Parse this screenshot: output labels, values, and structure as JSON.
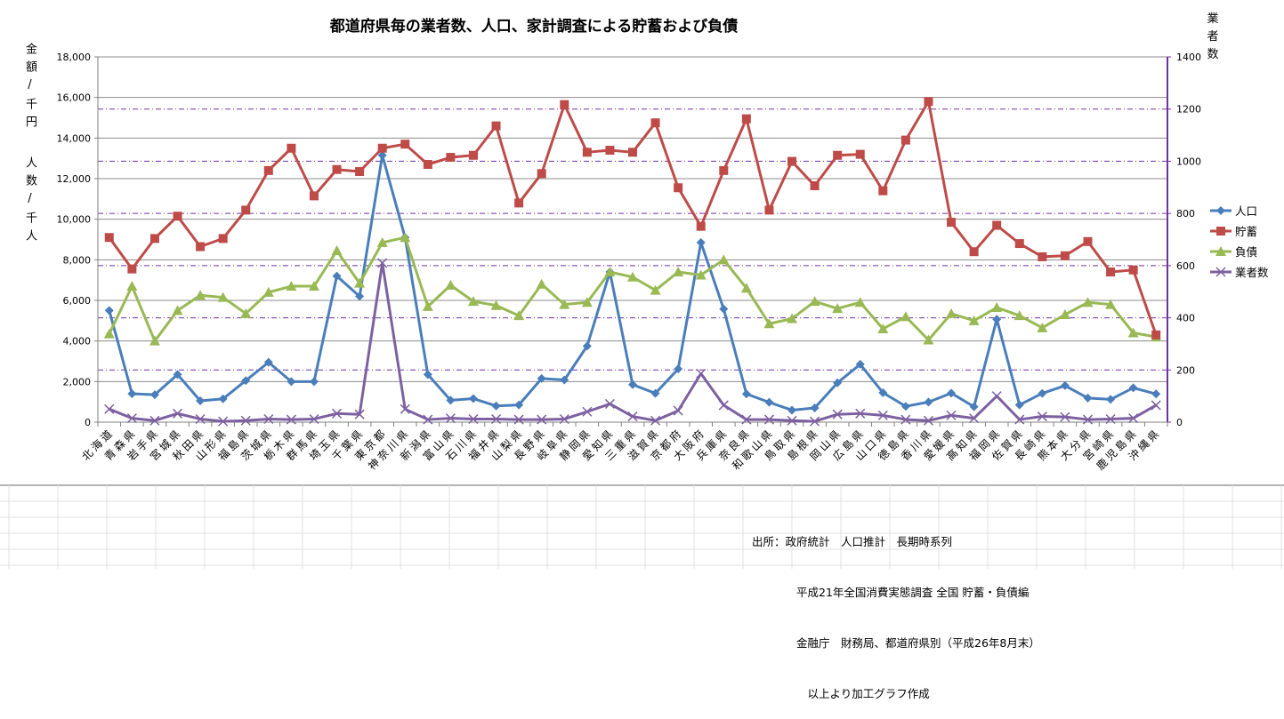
{
  "chart_data": {
    "type": "line",
    "title": "都道府県毎の業者数、人口、家計調査による貯蓄および負債",
    "ylabel_left_1": "金額/千円",
    "ylabel_left_2": "人数/千人",
    "ylabel_right": "業者数",
    "ylim_left": [
      0,
      18000
    ],
    "yticks_left": [
      "0",
      "2,000",
      "4,000",
      "6,000",
      "8,000",
      "10,000",
      "12,000",
      "14,000",
      "16,000",
      "18,000"
    ],
    "ylim_right": [
      0,
      1400
    ],
    "yticks_right": [
      "0",
      "200",
      "400",
      "600",
      "800",
      "1000",
      "1200",
      "1400"
    ],
    "grid": true,
    "legend_position": "right",
    "categories": [
      "北海道",
      "青森県",
      "岩手県",
      "宮城県",
      "秋田県",
      "山形県",
      "福島県",
      "茨城県",
      "栃木県",
      "群馬県",
      "埼玉県",
      "千葉県",
      "東京都",
      "神奈川県",
      "新潟県",
      "富山県",
      "石川県",
      "福井県",
      "山梨県",
      "長野県",
      "岐阜県",
      "静岡県",
      "愛知県",
      "三重県",
      "滋賀県",
      "京都府",
      "大阪府",
      "兵庫県",
      "奈良県",
      "和歌山県",
      "鳥取県",
      "島根県",
      "岡山県",
      "広島県",
      "山口県",
      "徳島県",
      "香川県",
      "愛媛県",
      "高知県",
      "福岡県",
      "佐賀県",
      "長崎県",
      "熊本県",
      "大分県",
      "宮崎県",
      "鹿児島県",
      "沖縄県"
    ],
    "series": [
      {
        "name": "人口",
        "axis": "left",
        "color": "#4A7EBB",
        "marker": "diamond",
        "values": [
          5500,
          1400,
          1350,
          2350,
          1050,
          1150,
          2050,
          2950,
          2000,
          2000,
          7200,
          6200,
          13150,
          9100,
          2350,
          1080,
          1160,
          800,
          850,
          2150,
          2080,
          3750,
          7400,
          1850,
          1420,
          2620,
          8850,
          5580,
          1390,
          980,
          590,
          700,
          1940,
          2850,
          1450,
          780,
          990,
          1430,
          760,
          5070,
          850,
          1420,
          1800,
          1190,
          1120,
          1690,
          1390
        ]
      },
      {
        "name": "貯蓄",
        "axis": "left",
        "color": "#BE4B48",
        "marker": "square",
        "values": [
          9100,
          7550,
          9050,
          10150,
          8650,
          9050,
          10450,
          12400,
          13500,
          11150,
          12450,
          12350,
          13500,
          13700,
          12700,
          13050,
          13150,
          14600,
          10800,
          12250,
          15650,
          13300,
          13400,
          13300,
          14750,
          11550,
          9650,
          12400,
          14950,
          10450,
          12850,
          11650,
          13150,
          13200,
          11400,
          13900,
          15800,
          9850,
          8400,
          9700,
          8800,
          8150,
          8200,
          8900,
          7400,
          7500,
          4300
        ]
      },
      {
        "name": "負債",
        "axis": "left",
        "color": "#98B954",
        "marker": "triangle",
        "values": [
          4350,
          6700,
          4000,
          5500,
          6250,
          6150,
          5350,
          6400,
          6700,
          6700,
          8450,
          6850,
          8850,
          9100,
          5700,
          6750,
          5950,
          5750,
          5250,
          6800,
          5800,
          5900,
          7400,
          7150,
          6500,
          7400,
          7250,
          8000,
          6600,
          4850,
          5100,
          5950,
          5600,
          5900,
          4600,
          5200,
          4050,
          5350,
          5000,
          5650,
          5250,
          4650,
          5300,
          5900,
          5800,
          4400,
          4200
        ]
      },
      {
        "name": "業者数",
        "axis": "right",
        "color": "#7D60A0",
        "marker": "x",
        "values": [
          50,
          15,
          6,
          33,
          12,
          3,
          6,
          12,
          10,
          12,
          33,
          30,
          610,
          50,
          10,
          15,
          12,
          12,
          10,
          10,
          12,
          40,
          70,
          22,
          6,
          44,
          186,
          65,
          10,
          10,
          6,
          3,
          30,
          33,
          26,
          10,
          6,
          26,
          15,
          100,
          10,
          22,
          20,
          10,
          12,
          15,
          65
        ]
      }
    ]
  },
  "source": {
    "lines": [
      "出所：政府統計　人口推計　長期時系列",
      "　　　　平成21年全国消費実態調査 全国 貯蓄・負債編",
      "　　　　金融庁　財務局、都道府県別（平成26年8月末）",
      "　　　　　以上より加工グラフ作成"
    ]
  }
}
